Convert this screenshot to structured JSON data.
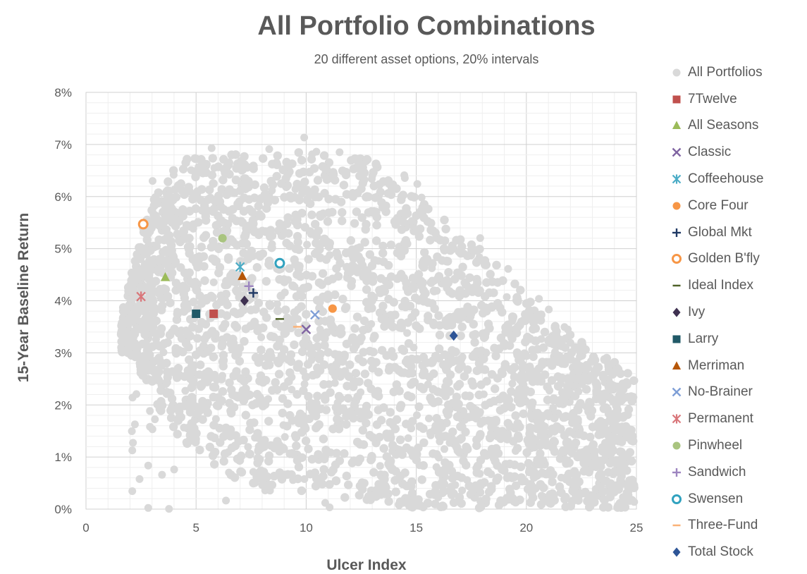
{
  "chart_data": {
    "type": "scatter",
    "title": "All Portfolio Combinations",
    "subtitle": "20 different asset options, 20% intervals",
    "xlabel": "Ulcer Index",
    "ylabel": "15-Year Baseline Return",
    "xlim": [
      0,
      25
    ],
    "ylim": [
      0,
      8
    ],
    "x_ticks": [
      "0",
      "5",
      "10",
      "15",
      "20",
      "25"
    ],
    "y_ticks": [
      "0%",
      "1%",
      "2%",
      "3%",
      "4%",
      "5%",
      "6%",
      "7%",
      "8%"
    ],
    "grid": true,
    "legend_position": "right",
    "background_series": {
      "name": "All Portfolios",
      "color": "#d9d9d9",
      "marker": "circle"
    },
    "series": [
      {
        "name": "7Twelve",
        "x": 5.8,
        "y": 3.75,
        "marker": "square",
        "color": "#c0504d"
      },
      {
        "name": "All Seasons",
        "x": 3.6,
        "y": 4.45,
        "marker": "triangle",
        "color": "#9bbb59"
      },
      {
        "name": "Classic",
        "x": 10.0,
        "y": 3.45,
        "marker": "x",
        "color": "#8064a2"
      },
      {
        "name": "Coffeehouse",
        "x": 7.0,
        "y": 4.65,
        "marker": "star",
        "color": "#4bacc6"
      },
      {
        "name": "Core Four",
        "x": 11.2,
        "y": 3.85,
        "marker": "circle",
        "color": "#f79646"
      },
      {
        "name": "Global Mkt",
        "x": 7.6,
        "y": 4.15,
        "marker": "plus",
        "color": "#1f3864"
      },
      {
        "name": "Golden B'fly",
        "x": 2.6,
        "y": 5.47,
        "marker": "ring",
        "color": "#f79646"
      },
      {
        "name": "Ideal Index",
        "x": 8.8,
        "y": 3.65,
        "marker": "dash",
        "color": "#4f6228"
      },
      {
        "name": "Ivy",
        "x": 7.2,
        "y": 4.0,
        "marker": "diamond",
        "color": "#3f3151"
      },
      {
        "name": "Larry",
        "x": 5.0,
        "y": 3.75,
        "marker": "square",
        "color": "#215967"
      },
      {
        "name": "Merriman",
        "x": 7.1,
        "y": 4.47,
        "marker": "triangle",
        "color": "#b65708"
      },
      {
        "name": "No-Brainer",
        "x": 10.4,
        "y": 3.73,
        "marker": "x",
        "color": "#7e9ed6"
      },
      {
        "name": "Permanent",
        "x": 2.5,
        "y": 4.08,
        "marker": "star",
        "color": "#d9767a"
      },
      {
        "name": "Pinwheel",
        "x": 6.2,
        "y": 5.2,
        "marker": "circle",
        "color": "#a9c47f"
      },
      {
        "name": "Sandwich",
        "x": 7.4,
        "y": 4.28,
        "marker": "plus",
        "color": "#9d85c0"
      },
      {
        "name": "Swensen",
        "x": 8.8,
        "y": 4.72,
        "marker": "ring",
        "color": "#31a2bf"
      },
      {
        "name": "Three-Fund",
        "x": 9.6,
        "y": 3.5,
        "marker": "dash",
        "color": "#fab277"
      },
      {
        "name": "Total Stock",
        "x": 16.7,
        "y": 3.33,
        "marker": "diamond",
        "color": "#2e5597"
      }
    ]
  }
}
